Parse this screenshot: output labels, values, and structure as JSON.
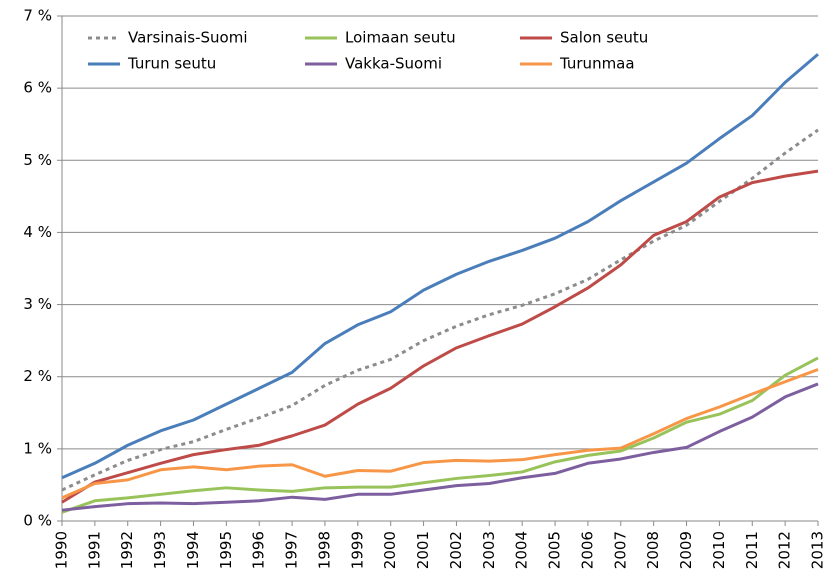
{
  "chart_data": {
    "type": "line",
    "categories": [
      "1990",
      "1991",
      "1992",
      "1993",
      "1994",
      "1995",
      "1996",
      "1997",
      "1998",
      "1999",
      "2000",
      "2001",
      "2002",
      "2003",
      "2004",
      "2005",
      "2006",
      "2007",
      "2008",
      "2009",
      "2010",
      "2011",
      "2012",
      "2013"
    ],
    "series": [
      {
        "name": "Varsinais-Suomi",
        "color": "#8c8c8c",
        "dashed": true,
        "values": [
          0.43,
          0.64,
          0.84,
          0.99,
          1.1,
          1.27,
          1.43,
          1.6,
          1.88,
          2.09,
          2.24,
          2.5,
          2.7,
          2.86,
          2.99,
          3.15,
          3.35,
          3.62,
          3.88,
          4.1,
          4.43,
          4.75,
          5.1,
          5.42
        ]
      },
      {
        "name": "Loimaan seutu",
        "color": "#98c35a",
        "values": [
          0.12,
          0.28,
          0.32,
          0.37,
          0.42,
          0.46,
          0.43,
          0.41,
          0.46,
          0.47,
          0.47,
          0.53,
          0.59,
          0.63,
          0.68,
          0.82,
          0.91,
          0.97,
          1.15,
          1.37,
          1.48,
          1.67,
          2.02,
          2.26
        ]
      },
      {
        "name": "Salon seutu",
        "color": "#be4b48",
        "values": [
          0.26,
          0.54,
          0.67,
          0.8,
          0.92,
          0.99,
          1.05,
          1.18,
          1.33,
          1.62,
          1.84,
          2.15,
          2.4,
          2.57,
          2.73,
          2.97,
          3.23,
          3.55,
          3.96,
          4.15,
          4.49,
          4.69,
          4.78,
          4.85
        ]
      },
      {
        "name": "Turun seutu",
        "color": "#4a7ebb",
        "values": [
          0.6,
          0.8,
          1.05,
          1.25,
          1.4,
          1.62,
          1.84,
          2.06,
          2.46,
          2.72,
          2.9,
          3.2,
          3.42,
          3.6,
          3.75,
          3.92,
          4.15,
          4.44,
          4.7,
          4.96,
          5.3,
          5.62,
          6.08,
          6.47
        ]
      },
      {
        "name": "Vakka-Suomi",
        "color": "#7d5fa0",
        "values": [
          0.15,
          0.2,
          0.24,
          0.25,
          0.24,
          0.26,
          0.28,
          0.33,
          0.3,
          0.37,
          0.37,
          0.43,
          0.49,
          0.52,
          0.6,
          0.66,
          0.8,
          0.86,
          0.95,
          1.02,
          1.24,
          1.44,
          1.72,
          1.9
        ]
      },
      {
        "name": "Turunmaa",
        "color": "#f79646",
        "values": [
          0.32,
          0.52,
          0.57,
          0.71,
          0.75,
          0.71,
          0.76,
          0.78,
          0.62,
          0.7,
          0.69,
          0.81,
          0.84,
          0.83,
          0.85,
          0.92,
          0.98,
          1.01,
          1.21,
          1.42,
          1.58,
          1.76,
          1.93,
          2.1
        ]
      }
    ],
    "ylim": [
      0,
      7
    ],
    "yticks": [
      {
        "value": 0,
        "label": "0 %"
      },
      {
        "value": 1,
        "label": "1 %"
      },
      {
        "value": 2,
        "label": "2 %"
      },
      {
        "value": 3,
        "label": "3 %"
      },
      {
        "value": 4,
        "label": "4 %"
      },
      {
        "value": 5,
        "label": "5 %"
      },
      {
        "value": 6,
        "label": "6 %"
      },
      {
        "value": 7,
        "label": "7 %"
      }
    ],
    "grid": true,
    "legend": "top-left"
  }
}
